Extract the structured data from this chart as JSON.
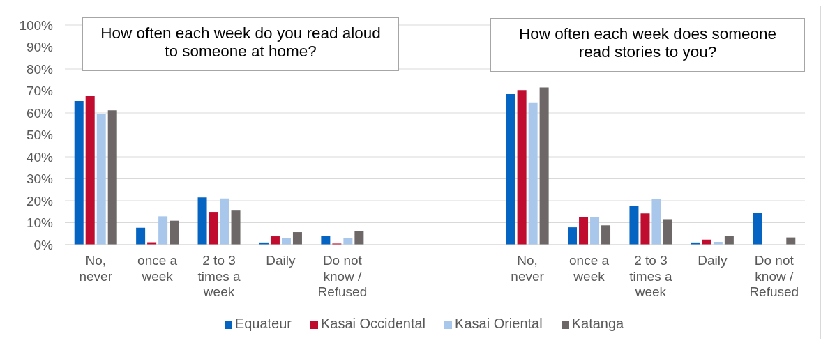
{
  "chart_data": {
    "type": "bar",
    "categories": [
      "No, never",
      "once a week",
      "2 to 3 times a week",
      "Daily",
      "Do not know / Refused",
      null,
      null,
      "No, never",
      "once a week",
      "2 to 3 times a week",
      "Daily",
      "Do not know / Refused"
    ],
    "series": [
      {
        "name": "Equateur",
        "color": "#0563c1",
        "values": [
          65.4,
          7.7,
          21.5,
          1.0,
          3.9,
          null,
          null,
          68.6,
          7.9,
          17.6,
          1.0,
          14.4
        ]
      },
      {
        "name": "Kasai Occidental",
        "color": "#c00c2f",
        "values": [
          67.6,
          1.1,
          14.9,
          3.8,
          0.5,
          null,
          null,
          70.4,
          12.5,
          14.2,
          2.3,
          null
        ]
      },
      {
        "name": "Kasai Oriental",
        "color": "#a9c7ea",
        "values": [
          59.4,
          12.9,
          21.0,
          3.0,
          3.0,
          null,
          null,
          64.5,
          12.5,
          20.8,
          1.3,
          null
        ]
      },
      {
        "name": "Katanga",
        "color": "#6d6767",
        "values": [
          61.2,
          10.9,
          15.5,
          5.7,
          6.1,
          null,
          null,
          71.6,
          8.8,
          11.6,
          4.1,
          3.3
        ]
      }
    ],
    "ylim": [
      0,
      100
    ],
    "yticks": [
      {
        "value": 0,
        "label": "0%"
      },
      {
        "value": 10,
        "label": "10%"
      },
      {
        "value": 20,
        "label": "20%"
      },
      {
        "value": 30,
        "label": "30%"
      },
      {
        "value": 40,
        "label": "40%"
      },
      {
        "value": 50,
        "label": "50%"
      },
      {
        "value": 60,
        "label": "60%"
      },
      {
        "value": 70,
        "label": "70%"
      },
      {
        "value": 80,
        "label": "80%"
      },
      {
        "value": 90,
        "label": "90%"
      },
      {
        "value": 100,
        "label": "100%"
      }
    ],
    "grid": "y",
    "legend": "bottom",
    "annotations": [
      "How often each week do you read aloud to someone at home?",
      "How often each week does someone read stories to you?"
    ]
  }
}
